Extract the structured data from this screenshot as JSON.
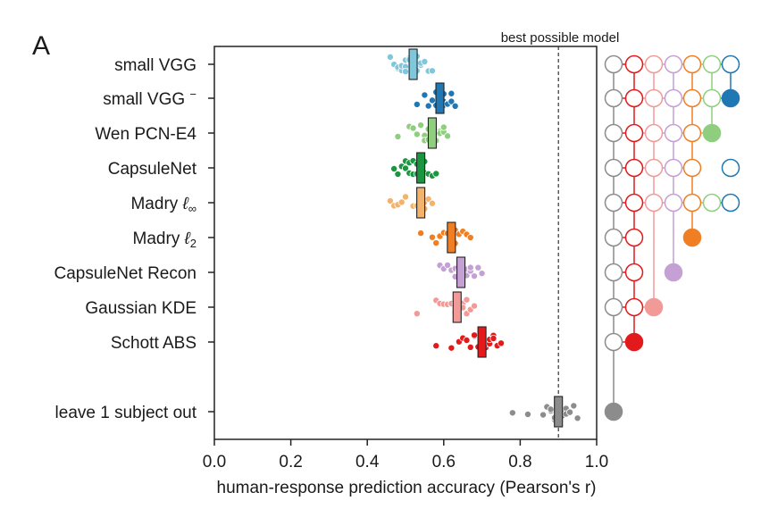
{
  "panel_label": "A",
  "chart_data": {
    "type": "strip",
    "xlabel": "human-response prediction accuracy (Pearson's r)",
    "xlim": [
      0.0,
      1.0
    ],
    "xticks": [
      "0.0",
      "0.2",
      "0.4",
      "0.6",
      "0.8",
      "1.0"
    ],
    "reference_line": {
      "x": 0.9,
      "label": "best possible model"
    },
    "models": [
      {
        "name": "small VGG",
        "color": "#7ec8dd",
        "mean": 0.52,
        "points": [
          0.46,
          0.47,
          0.48,
          0.48,
          0.49,
          0.49,
          0.5,
          0.5,
          0.5,
          0.51,
          0.51,
          0.52,
          0.52,
          0.53,
          0.53,
          0.54,
          0.54,
          0.55,
          0.56,
          0.57
        ]
      },
      {
        "name": "small VGG",
        "sup": "−",
        "color": "#1f78b4",
        "mean": 0.59,
        "points": [
          0.53,
          0.55,
          0.56,
          0.57,
          0.58,
          0.58,
          0.59,
          0.59,
          0.6,
          0.6,
          0.6,
          0.61,
          0.61,
          0.62,
          0.62,
          0.63
        ]
      },
      {
        "name": "Wen PCN-E4",
        "color": "#8fce7e",
        "mean": 0.57,
        "points": [
          0.48,
          0.51,
          0.52,
          0.53,
          0.54,
          0.55,
          0.55,
          0.56,
          0.56,
          0.57,
          0.57,
          0.58,
          0.58,
          0.59,
          0.59,
          0.6,
          0.6,
          0.61
        ]
      },
      {
        "name": "CapsuleNet",
        "color": "#1a9641",
        "mean": 0.54,
        "points": [
          0.47,
          0.48,
          0.49,
          0.5,
          0.5,
          0.51,
          0.51,
          0.52,
          0.52,
          0.53,
          0.53,
          0.54,
          0.54,
          0.55,
          0.55,
          0.56,
          0.57,
          0.58
        ]
      },
      {
        "name": "Madry",
        "sub": "∞",
        "color": "#f4b36c",
        "mean": 0.54,
        "points": [
          0.46,
          0.47,
          0.48,
          0.49,
          0.5,
          0.52,
          0.53,
          0.54,
          0.55,
          0.55,
          0.56,
          0.57
        ]
      },
      {
        "name": "Madry",
        "sub": "2",
        "color": "#f07f24",
        "mean": 0.62,
        "points": [
          0.54,
          0.57,
          0.58,
          0.59,
          0.6,
          0.61,
          0.62,
          0.62,
          0.63,
          0.63,
          0.64,
          0.65,
          0.66,
          0.67
        ]
      },
      {
        "name": "CapsuleNet Recon",
        "color": "#c4a0d4",
        "mean": 0.645,
        "points": [
          0.59,
          0.6,
          0.61,
          0.62,
          0.63,
          0.63,
          0.64,
          0.64,
          0.65,
          0.65,
          0.66,
          0.66,
          0.67,
          0.67,
          0.68,
          0.69,
          0.7
        ]
      },
      {
        "name": "Gaussian KDE",
        "color": "#f29a98",
        "mean": 0.635,
        "points": [
          0.53,
          0.58,
          0.59,
          0.6,
          0.61,
          0.62,
          0.62,
          0.63,
          0.63,
          0.64,
          0.64,
          0.65,
          0.65,
          0.66,
          0.66,
          0.67,
          0.68
        ]
      },
      {
        "name": "Schott ABS",
        "color": "#e31a1c",
        "mean": 0.7,
        "points": [
          0.58,
          0.62,
          0.64,
          0.65,
          0.66,
          0.67,
          0.68,
          0.68,
          0.69,
          0.7,
          0.7,
          0.71,
          0.71,
          0.72,
          0.72,
          0.73,
          0.73,
          0.74,
          0.75
        ]
      },
      {
        "name": "leave 1 subject out",
        "color": "#8c8c8c",
        "mean": 0.9,
        "points": [
          0.78,
          0.82,
          0.86,
          0.87,
          0.88,
          0.88,
          0.89,
          0.89,
          0.9,
          0.9,
          0.9,
          0.91,
          0.91,
          0.92,
          0.92,
          0.93,
          0.94,
          0.95
        ]
      }
    ],
    "significance_matrix": {
      "column_colors": [
        "#8c8c8c",
        "#e31a1c",
        "#f29a98",
        "#c4a0d4",
        "#f07f24",
        "#8fce7e",
        "#1f78b4"
      ],
      "cells": [
        [
          "o",
          "o",
          "o",
          "o",
          "o",
          "o",
          "o"
        ],
        [
          "o",
          "o",
          "o",
          "o",
          "o",
          "o",
          "F"
        ],
        [
          "o",
          "o",
          "o",
          "o",
          "o",
          "F",
          "-"
        ],
        [
          "o",
          "o",
          "o",
          "o",
          "o",
          "-",
          "o"
        ],
        [
          "o",
          "o",
          "o",
          "o",
          "o",
          "o",
          "o"
        ],
        [
          "o",
          "o",
          "-",
          "-",
          "F",
          "-",
          "-"
        ],
        [
          "o",
          "o",
          "-",
          "F",
          "-",
          "-",
          "-"
        ],
        [
          "o",
          "o",
          "F",
          "-",
          "-",
          "-",
          "-"
        ],
        [
          "o",
          "F",
          "-",
          "-",
          "-",
          "-",
          "-"
        ],
        [
          "F",
          "-",
          "-",
          "-",
          "-",
          "-",
          "-"
        ]
      ]
    }
  }
}
